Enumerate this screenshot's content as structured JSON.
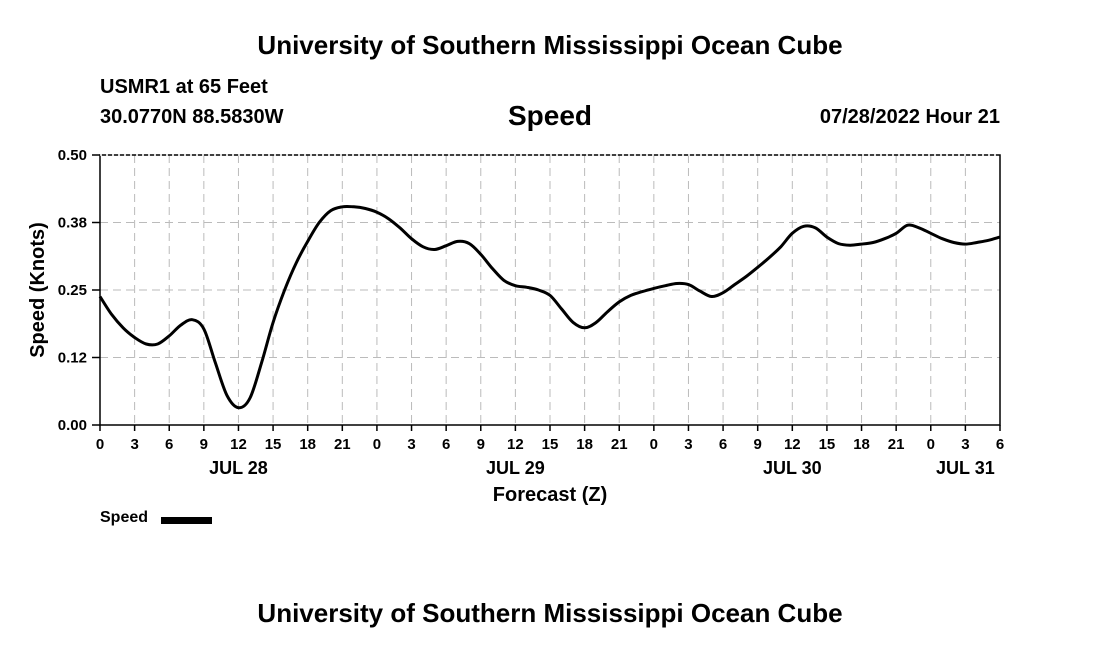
{
  "header": {
    "title": "University of Southern Mississippi Ocean Cube",
    "station": "USMR1 at 65 Feet",
    "coords": "30.0770N  88.5830W",
    "chart_title": "Speed",
    "timestamp": "07/28/2022 Hour 21"
  },
  "footer": {
    "title": "University of Southern Mississippi Ocean Cube"
  },
  "legend": {
    "label": "Speed"
  },
  "colors": {
    "line": "#000000",
    "grid": "#bbbbbb",
    "background": "#ffffff"
  },
  "chart_data": {
    "type": "line",
    "title": "Speed",
    "xlabel": "Forecast (Z)",
    "ylabel": "Speed (Knots)",
    "ylim": [
      0,
      0.5
    ],
    "xlim": [
      0,
      78
    ],
    "y_ticks": [
      0,
      0.125,
      0.25,
      0.375,
      0.5
    ],
    "y_tick_labels": [
      "0.00",
      "0.12",
      "0.25",
      "0.38",
      "0.50"
    ],
    "x_tick_labels": [
      "0",
      "3",
      "6",
      "9",
      "12",
      "15",
      "18",
      "21",
      "0",
      "3",
      "6",
      "9",
      "12",
      "15",
      "18",
      "21",
      "0",
      "3",
      "6",
      "9",
      "12",
      "15",
      "18",
      "21",
      "0",
      "3",
      "6"
    ],
    "date_labels": [
      {
        "label": "JUL 28",
        "at_hour": 12
      },
      {
        "label": "JUL 29",
        "at_hour": 36
      },
      {
        "label": "JUL 30",
        "at_hour": 60
      },
      {
        "label": "JUL 31",
        "at_hour": 75
      }
    ],
    "grid": true,
    "legend_position": "bottom-left",
    "series": [
      {
        "name": "Speed",
        "x": [
          0,
          1,
          2,
          3,
          4,
          5,
          6,
          7,
          8,
          9,
          10,
          11,
          12,
          13,
          14,
          15,
          16,
          17,
          18,
          19,
          20,
          21,
          22,
          23,
          24,
          25,
          26,
          27,
          28,
          29,
          30,
          31,
          32,
          33,
          34,
          35,
          36,
          37,
          38,
          39,
          40,
          41,
          42,
          43,
          44,
          45,
          46,
          47,
          48,
          49,
          50,
          51,
          52,
          53,
          54,
          55,
          56,
          57,
          58,
          59,
          60,
          61,
          62,
          63,
          64,
          65,
          66,
          67,
          68,
          69,
          70,
          71,
          72,
          73,
          74,
          75,
          76,
          77,
          78
        ],
        "values": [
          0.238,
          0.205,
          0.18,
          0.162,
          0.15,
          0.15,
          0.165,
          0.185,
          0.195,
          0.178,
          0.115,
          0.055,
          0.032,
          0.05,
          0.115,
          0.19,
          0.25,
          0.3,
          0.34,
          0.375,
          0.397,
          0.404,
          0.404,
          0.401,
          0.394,
          0.382,
          0.365,
          0.345,
          0.33,
          0.325,
          0.332,
          0.34,
          0.336,
          0.316,
          0.29,
          0.268,
          0.258,
          0.255,
          0.25,
          0.24,
          0.215,
          0.19,
          0.18,
          0.19,
          0.21,
          0.228,
          0.24,
          0.247,
          0.253,
          0.258,
          0.262,
          0.26,
          0.248,
          0.238,
          0.245,
          0.26,
          0.275,
          0.292,
          0.31,
          0.33,
          0.355,
          0.368,
          0.365,
          0.348,
          0.336,
          0.333,
          0.335,
          0.338,
          0.345,
          0.355,
          0.37,
          0.365,
          0.355,
          0.345,
          0.338,
          0.335,
          0.338,
          0.342,
          0.348
        ]
      }
    ]
  }
}
